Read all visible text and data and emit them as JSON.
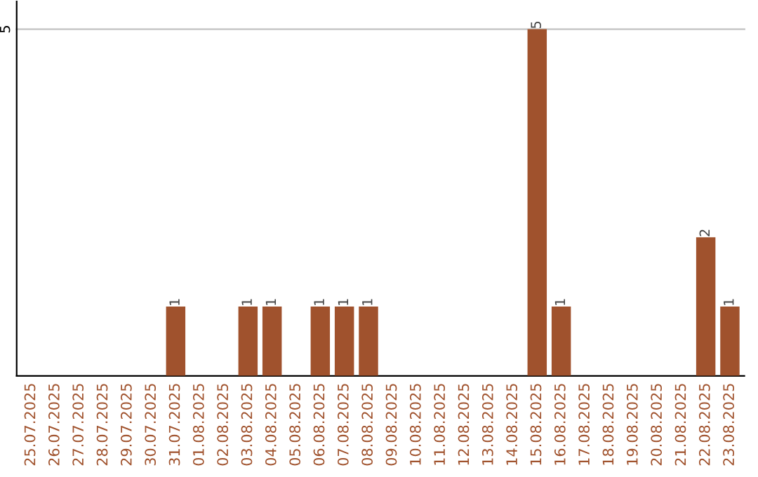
{
  "chart_data": {
    "type": "bar",
    "categories": [
      "25.07.2025",
      "26.07.2025",
      "27.07.2025",
      "28.07.2025",
      "29.07.2025",
      "30.07.2025",
      "31.07.2025",
      "01.08.2025",
      "02.08.2025",
      "03.08.2025",
      "04.08.2025",
      "05.08.2025",
      "06.08.2025",
      "07.08.2025",
      "08.08.2025",
      "09.08.2025",
      "10.08.2025",
      "11.08.2025",
      "12.08.2025",
      "13.08.2025",
      "14.08.2025",
      "15.08.2025",
      "16.08.2025",
      "17.08.2025",
      "18.08.2025",
      "19.08.2025",
      "20.08.2025",
      "21.08.2025",
      "22.08.2025",
      "23.08.2025"
    ],
    "values": [
      0,
      0,
      0,
      0,
      0,
      0,
      1,
      0,
      0,
      1,
      1,
      0,
      1,
      1,
      1,
      0,
      0,
      0,
      0,
      0,
      0,
      5,
      1,
      0,
      0,
      0,
      0,
      0,
      2,
      1
    ],
    "value_labels": [
      null,
      null,
      null,
      null,
      null,
      null,
      "1",
      null,
      null,
      "1",
      "1",
      null,
      "1",
      "1",
      "1",
      null,
      null,
      null,
      null,
      null,
      null,
      "5",
      "1",
      null,
      null,
      null,
      null,
      null,
      "2",
      "1"
    ],
    "color": "#a0522d",
    "ylim": [
      0,
      5.4
    ],
    "yticks": [
      5
    ],
    "grid": "y"
  }
}
